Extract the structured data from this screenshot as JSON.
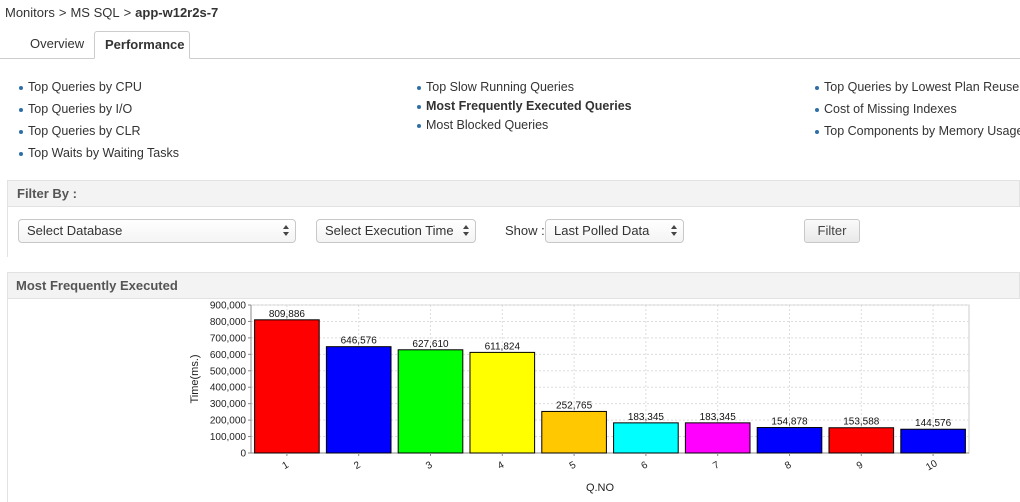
{
  "breadcrumb": {
    "items": [
      "Monitors",
      "MS SQL"
    ],
    "current": "app-w12r2s-7",
    "separator": ">"
  },
  "tabs": [
    {
      "label": "Overview",
      "active": false
    },
    {
      "label": "Performance",
      "active": true
    }
  ],
  "links": {
    "col1": [
      "Top Queries by CPU",
      "Top Queries by I/O",
      "Top Queries by CLR",
      "Top Waits by Waiting Tasks"
    ],
    "col2": [
      "Top Slow Running Queries",
      "Most Frequently Executed Queries",
      "Most Blocked Queries"
    ],
    "col3": [
      "Top Queries by Lowest Plan Reuse",
      "Cost of Missing Indexes",
      "Top Components by Memory Usage"
    ],
    "active": "Most Frequently Executed Queries"
  },
  "filter": {
    "title": "Filter By :",
    "database_select": "Select Database",
    "time_select": "Select Execution Time",
    "show_label": "Show :",
    "show_select": "Last Polled Data",
    "button": "Filter"
  },
  "chart_section": {
    "title": "Most Frequently Executed"
  },
  "chart_data": {
    "type": "bar",
    "categories": [
      "1",
      "2",
      "3",
      "4",
      "5",
      "6",
      "7",
      "8",
      "9",
      "10"
    ],
    "values": [
      809886,
      646576,
      627610,
      611824,
      252765,
      183345,
      183345,
      154878,
      153588,
      144576
    ],
    "value_labels": [
      "809,886",
      "646,576",
      "627,610",
      "611,824",
      "252,765",
      "183,345",
      "183,345",
      "154,878",
      "153,588",
      "144,576"
    ],
    "colors": [
      "#ff0000",
      "#0000ff",
      "#00ff00",
      "#ffff00",
      "#ffc800",
      "#00ffff",
      "#ff00ff",
      "#0000ff",
      "#ff0000",
      "#0000ff"
    ],
    "xlabel": "Q.NO",
    "ylabel": "Time(ms.)",
    "ylim": [
      0,
      900000
    ],
    "yticks": [
      0,
      100000,
      200000,
      300000,
      400000,
      500000,
      600000,
      700000,
      800000,
      900000
    ],
    "ytick_labels": [
      "0",
      "100,000",
      "200,000",
      "300,000",
      "400,000",
      "500,000",
      "600,000",
      "700,000",
      "800,000",
      "900,000"
    ],
    "grid": true
  }
}
